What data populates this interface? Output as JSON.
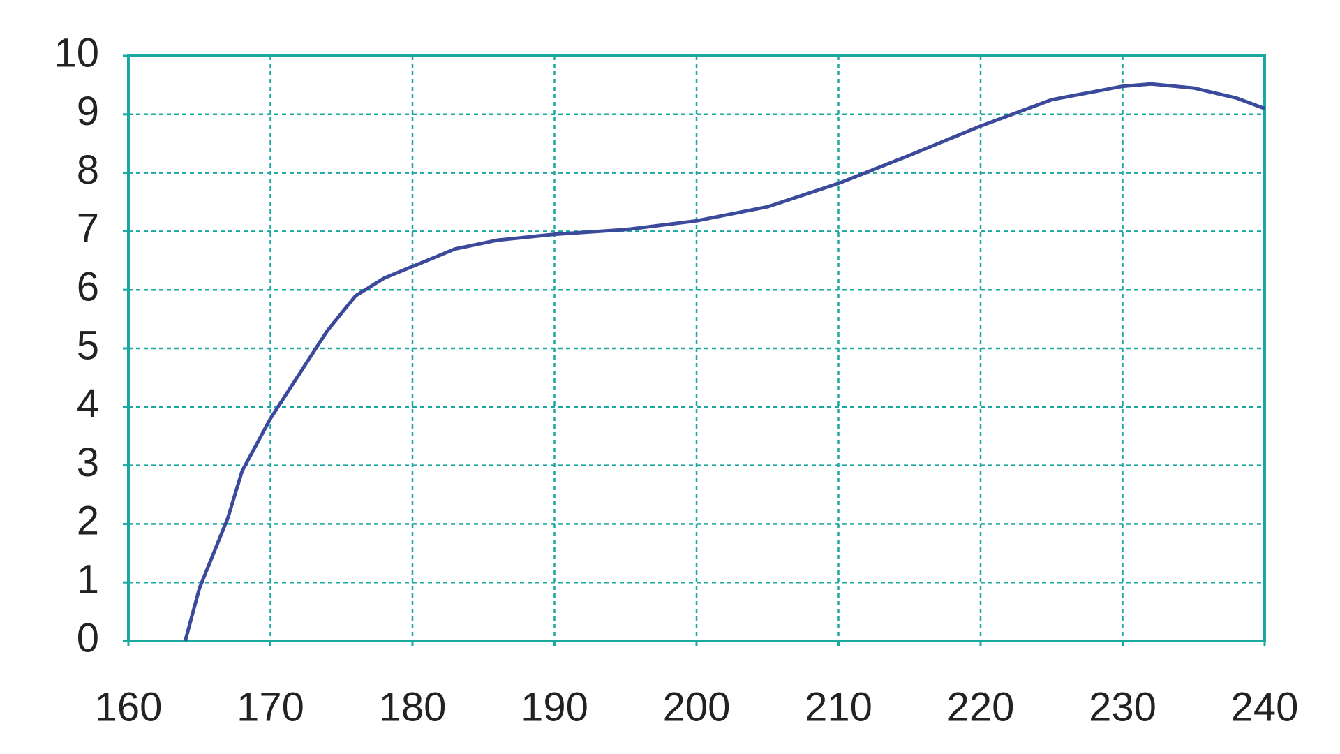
{
  "chart_data": {
    "type": "line",
    "x": [
      164,
      165,
      167,
      168,
      170,
      172,
      174,
      176,
      178,
      180,
      183,
      186,
      190,
      195,
      200,
      205,
      210,
      215,
      220,
      225,
      230,
      232,
      235,
      238,
      240
    ],
    "series": [
      {
        "color": "#3c4a9c",
        "values": [
          0,
          0.9,
          2.1,
          2.9,
          3.8,
          4.55,
          5.3,
          5.9,
          6.2,
          6.4,
          6.7,
          6.85,
          6.95,
          7.03,
          7.18,
          7.42,
          7.82,
          8.3,
          8.8,
          9.25,
          9.48,
          9.52,
          9.45,
          9.28,
          9.1
        ]
      }
    ],
    "xlim": [
      160,
      240
    ],
    "xticks": [
      160,
      170,
      180,
      190,
      200,
      210,
      220,
      230,
      240
    ],
    "ylim": [
      0,
      10
    ],
    "yticks": [
      0,
      1,
      2,
      3,
      4,
      5,
      6,
      7,
      8,
      9,
      10
    ],
    "grid": true,
    "grid_color": "#1aa8a0"
  }
}
